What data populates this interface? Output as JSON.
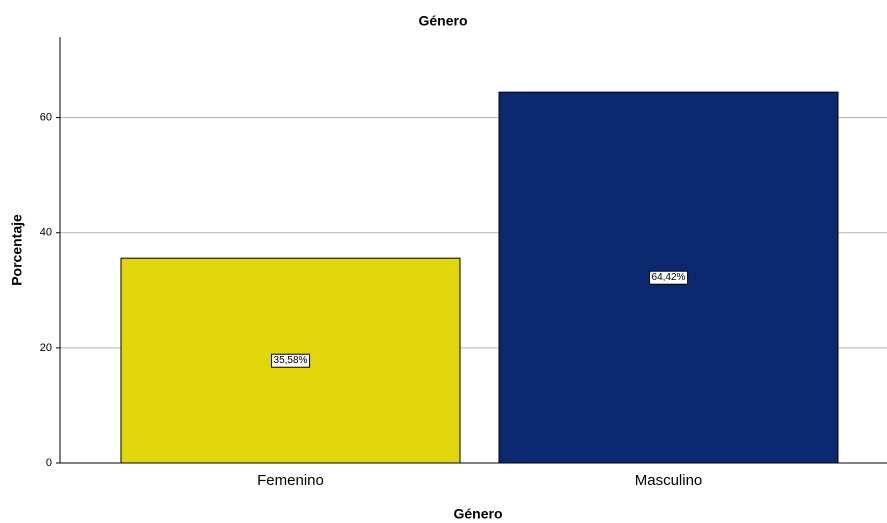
{
  "chart_data": {
    "type": "bar",
    "title": "Género",
    "xlabel": "Género",
    "ylabel": "Porcentaje",
    "categories": [
      "Femenino",
      "Masculino"
    ],
    "values": [
      35.58,
      64.42
    ],
    "value_labels": [
      "35,58%",
      "64,42%"
    ],
    "colors": [
      "#e1d60b",
      "#0b2870"
    ],
    "ylim": [
      0,
      74
    ],
    "yticks": [
      0,
      20,
      40,
      60
    ],
    "grid": true
  }
}
